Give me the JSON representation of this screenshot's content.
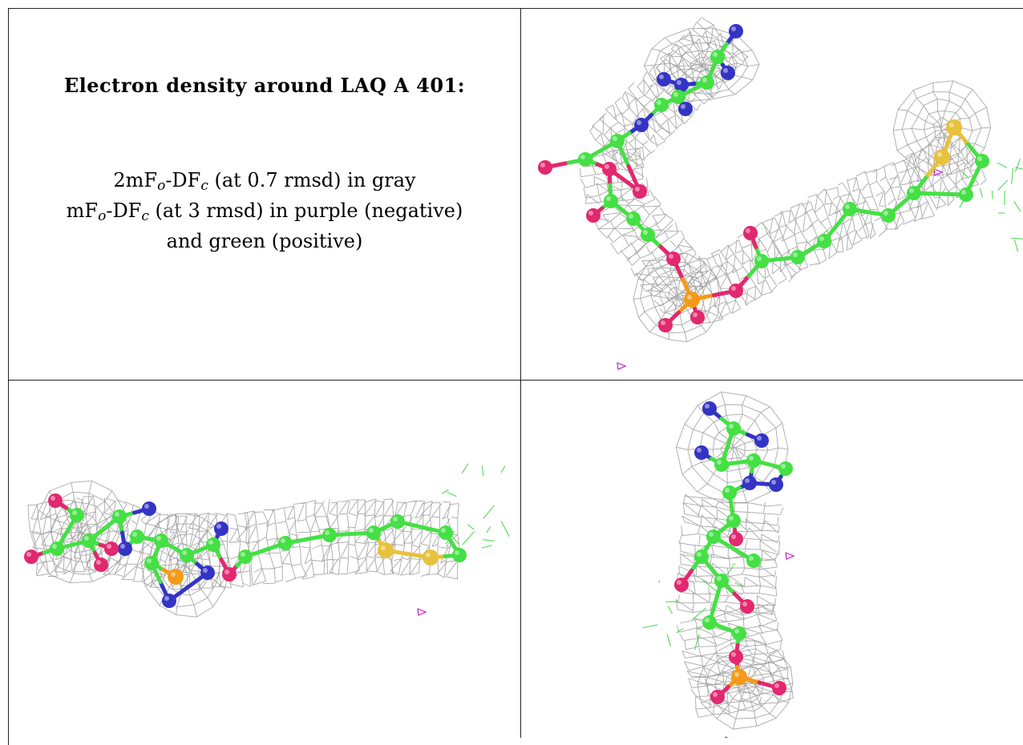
{
  "title": "Electron density around LAQ A 401:",
  "legend": {
    "line1": {
      "a": "2mF",
      "a_sub": "o",
      "b": "-DF",
      "b_sub": "c",
      "rest": " (at 0.7 rmsd) in gray"
    },
    "line2": {
      "a": "mF",
      "a_sub": "o",
      "b": "-DF",
      "b_sub": "c",
      "rest": " (at 3 rmsd) in purple (negative)"
    },
    "line3": "and green (positive)"
  },
  "colors": {
    "carbon": "#44e044",
    "nitrogen": "#3434c4",
    "oxygen": "#e2286e",
    "phosphorus": "#f59a18",
    "sulfur": "#e8c23c",
    "mesh_gray": "#9a9a9a",
    "mesh_green": "#40d840",
    "mesh_purple": "#c020c0"
  },
  "panels": [
    {
      "view": "front"
    },
    {
      "view": "side"
    },
    {
      "view": "end"
    }
  ]
}
